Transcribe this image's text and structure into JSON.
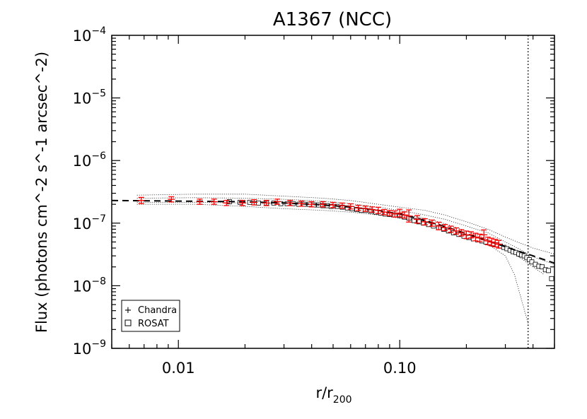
{
  "chart_data": {
    "type": "scatter",
    "title": "A1367 (NCC)",
    "xlabel_main": "r/r",
    "xlabel_sub": "200",
    "ylabel": "Flux (photons cm^-2 s^-1 arcsec^-2)",
    "xscale": "log",
    "yscale": "log",
    "xlim": [
      0.005,
      0.5
    ],
    "ylim": [
      1e-09,
      0.0001
    ],
    "x_ticks": [
      {
        "value": 0.01,
        "label": "0.01"
      },
      {
        "value": 0.1,
        "label": "0.10"
      }
    ],
    "y_ticks": [
      {
        "value": 1e-09,
        "base": "10",
        "exp": "−9"
      },
      {
        "value": 1e-08,
        "base": "10",
        "exp": "−8"
      },
      {
        "value": 1e-07,
        "base": "10",
        "exp": "−7"
      },
      {
        "value": 1e-06,
        "base": "10",
        "exp": "−6"
      },
      {
        "value": 1e-05,
        "base": "10",
        "exp": "−5"
      },
      {
        "value": 0.0001,
        "base": "10",
        "exp": "−4"
      }
    ],
    "legend": {
      "placement": "bottom-left",
      "entries": [
        {
          "label": "Chandra",
          "marker": "plus",
          "color": "#ff0000"
        },
        {
          "label": "ROSAT",
          "marker": "square",
          "color": "#000000"
        }
      ]
    },
    "vertical_line": {
      "x": 0.38,
      "style": "dotted"
    },
    "series": [
      {
        "name": "Chandra",
        "marker": "plus",
        "color": "#ff0000",
        "x": [
          0.0068,
          0.0093,
          0.0125,
          0.0145,
          0.0165,
          0.0195,
          0.022,
          0.025,
          0.028,
          0.032,
          0.036,
          0.04,
          0.045,
          0.05,
          0.055,
          0.06,
          0.065,
          0.07,
          0.075,
          0.08,
          0.085,
          0.09,
          0.095,
          0.1,
          0.105,
          0.11,
          0.12,
          0.13,
          0.14,
          0.15,
          0.16,
          0.17,
          0.18,
          0.19,
          0.2,
          0.21,
          0.22,
          0.23,
          0.24,
          0.25,
          0.26,
          0.27,
          0.28
        ],
        "y": [
          2.3e-07,
          2.4e-07,
          2.2e-07,
          2.2e-07,
          2.1e-07,
          2.1e-07,
          2.15e-07,
          2.1e-07,
          2.2e-07,
          2.1e-07,
          2.05e-07,
          2e-07,
          2e-07,
          1.95e-07,
          1.9e-07,
          1.85e-07,
          1.75e-07,
          1.7e-07,
          1.65e-07,
          1.6e-07,
          1.5e-07,
          1.45e-07,
          1.4e-07,
          1.45e-07,
          1.35e-07,
          1.3e-07,
          1.15e-07,
          1.05e-07,
          1e-07,
          9e-08,
          8.5e-08,
          8e-08,
          7.5e-08,
          7e-08,
          6.5e-08,
          6.5e-08,
          6e-08,
          5.8e-08,
          6.5e-08,
          5.2e-08,
          5e-08,
          4.8e-08,
          4.6e-08
        ],
        "err": [
          0.12,
          0.1,
          0.1,
          0.1,
          0.1,
          0.1,
          0.1,
          0.1,
          0.1,
          0.1,
          0.1,
          0.1,
          0.1,
          0.1,
          0.1,
          0.1,
          0.1,
          0.1,
          0.1,
          0.12,
          0.1,
          0.1,
          0.12,
          0.15,
          0.12,
          0.25,
          0.15,
          0.12,
          0.12,
          0.15,
          0.12,
          0.12,
          0.12,
          0.12,
          0.15,
          0.12,
          0.15,
          0.15,
          0.2,
          0.15,
          0.15,
          0.15,
          0.15
        ]
      },
      {
        "name": "ROSAT",
        "marker": "square",
        "color": "#000000",
        "x": [
          0.017,
          0.019,
          0.021,
          0.023,
          0.025,
          0.027,
          0.029,
          0.031,
          0.033,
          0.035,
          0.037,
          0.039,
          0.041,
          0.043,
          0.045,
          0.047,
          0.049,
          0.052,
          0.055,
          0.058,
          0.061,
          0.064,
          0.067,
          0.07,
          0.074,
          0.078,
          0.082,
          0.086,
          0.09,
          0.095,
          0.1,
          0.105,
          0.11,
          0.116,
          0.122,
          0.128,
          0.135,
          0.142,
          0.15,
          0.158,
          0.166,
          0.175,
          0.185,
          0.195,
          0.205,
          0.215,
          0.225,
          0.235,
          0.245,
          0.255,
          0.265,
          0.275,
          0.285,
          0.295,
          0.305,
          0.315,
          0.325,
          0.335,
          0.345,
          0.355,
          0.365,
          0.375,
          0.385,
          0.395,
          0.41,
          0.425,
          0.44,
          0.455,
          0.47,
          0.485
        ],
        "y": [
          2.2e-07,
          2.15e-07,
          2.15e-07,
          2.1e-07,
          2.1e-07,
          2.1e-07,
          2.05e-07,
          2.05e-07,
          2.05e-07,
          2e-07,
          2e-07,
          2e-07,
          1.95e-07,
          1.95e-07,
          1.9e-07,
          1.9e-07,
          1.85e-07,
          1.85e-07,
          1.8e-07,
          1.75e-07,
          1.7e-07,
          1.65e-07,
          1.6e-07,
          1.6e-07,
          1.55e-07,
          1.5e-07,
          1.45e-07,
          1.4e-07,
          1.38e-07,
          1.35e-07,
          1.32e-07,
          1.25e-07,
          1.2e-07,
          1.1e-07,
          1.05e-07,
          1e-07,
          9.5e-08,
          9e-08,
          8.5e-08,
          8e-08,
          7.5e-08,
          7e-08,
          6.6e-08,
          6.2e-08,
          5.9e-08,
          5.6e-08,
          5.4e-08,
          5.2e-08,
          5e-08,
          4.8e-08,
          4.6e-08,
          4.5e-08,
          4.3e-08,
          4.1e-08,
          3.9e-08,
          3.7e-08,
          3.5e-08,
          3.4e-08,
          3.2e-08,
          3.1e-08,
          3e-08,
          2.8e-08,
          2.6e-08,
          2.4e-08,
          2.2e-08,
          2.05e-08,
          2e-08,
          1.8e-08,
          1.75e-08,
          1.3e-08
        ]
      }
    ],
    "model_curve": {
      "style": "dashed",
      "x": [
        0.005,
        0.01,
        0.02,
        0.03,
        0.04,
        0.05,
        0.06,
        0.07,
        0.08,
        0.1,
        0.12,
        0.15,
        0.2,
        0.25,
        0.3,
        0.35,
        0.4,
        0.45,
        0.5
      ],
      "y": [
        2.3e-07,
        2.25e-07,
        2.2e-07,
        2.1e-07,
        2e-07,
        1.9e-07,
        1.8e-07,
        1.7e-07,
        1.6e-07,
        1.4e-07,
        1.2e-07,
        9.5e-08,
        6.8e-08,
        5.2e-08,
        4.2e-08,
        3.5e-08,
        3e-08,
        2.6e-08,
        2.3e-08
      ]
    },
    "envelopes": [
      {
        "style": "dotted",
        "x": [
          0.0065,
          0.012,
          0.02,
          0.03,
          0.045,
          0.06,
          0.08,
          0.1,
          0.13,
          0.16,
          0.2,
          0.25,
          0.3,
          0.35,
          0.4,
          0.5
        ],
        "y": [
          2.8e-07,
          2.9e-07,
          2.9e-07,
          2.7e-07,
          2.5e-07,
          2.3e-07,
          2e-07,
          1.8e-07,
          1.6e-07,
          1.35e-07,
          1.05e-07,
          8e-08,
          6e-08,
          4.8e-08,
          4e-08,
          3.2e-08
        ]
      },
      {
        "style": "dotted",
        "x": [
          0.0065,
          0.012,
          0.02,
          0.03,
          0.045,
          0.06,
          0.08,
          0.1,
          0.13,
          0.16,
          0.2,
          0.25,
          0.3,
          0.35,
          0.4,
          0.5
        ],
        "y": [
          2.5e-07,
          2.55e-07,
          2.5e-07,
          2.4e-07,
          2.25e-07,
          2.05e-07,
          1.8e-07,
          1.6e-07,
          1.35e-07,
          1.15e-07,
          9e-08,
          7e-08,
          5e-08,
          3.8e-08,
          2.9e-08,
          2.2e-08
        ]
      },
      {
        "style": "dotted",
        "x": [
          0.0065,
          0.012,
          0.02,
          0.03,
          0.045,
          0.06,
          0.08,
          0.1,
          0.13,
          0.16,
          0.2,
          0.25,
          0.3,
          0.33,
          0.36,
          0.38
        ],
        "y": [
          2e-07,
          2e-07,
          1.85e-07,
          1.7e-07,
          1.6e-07,
          1.5e-07,
          1.35e-07,
          1.2e-07,
          1e-07,
          8.2e-08,
          6.2e-08,
          4.6e-08,
          3e-08,
          1.5e-08,
          5e-09,
          2.5e-09
        ]
      },
      {
        "style": "dotted",
        "x": [
          0.0065,
          0.012,
          0.02,
          0.03,
          0.045,
          0.06,
          0.08,
          0.1,
          0.13,
          0.16,
          0.2,
          0.25,
          0.3,
          0.35,
          0.4,
          0.45
        ],
        "y": [
          2.15e-07,
          2.15e-07,
          2.1e-07,
          2e-07,
          1.9e-07,
          1.75e-07,
          1.55e-07,
          1.4e-07,
          1.2e-07,
          9.8e-08,
          7.5e-08,
          5.5e-08,
          4e-08,
          2.8e-08,
          2e-08,
          1.5e-08
        ]
      }
    ]
  }
}
